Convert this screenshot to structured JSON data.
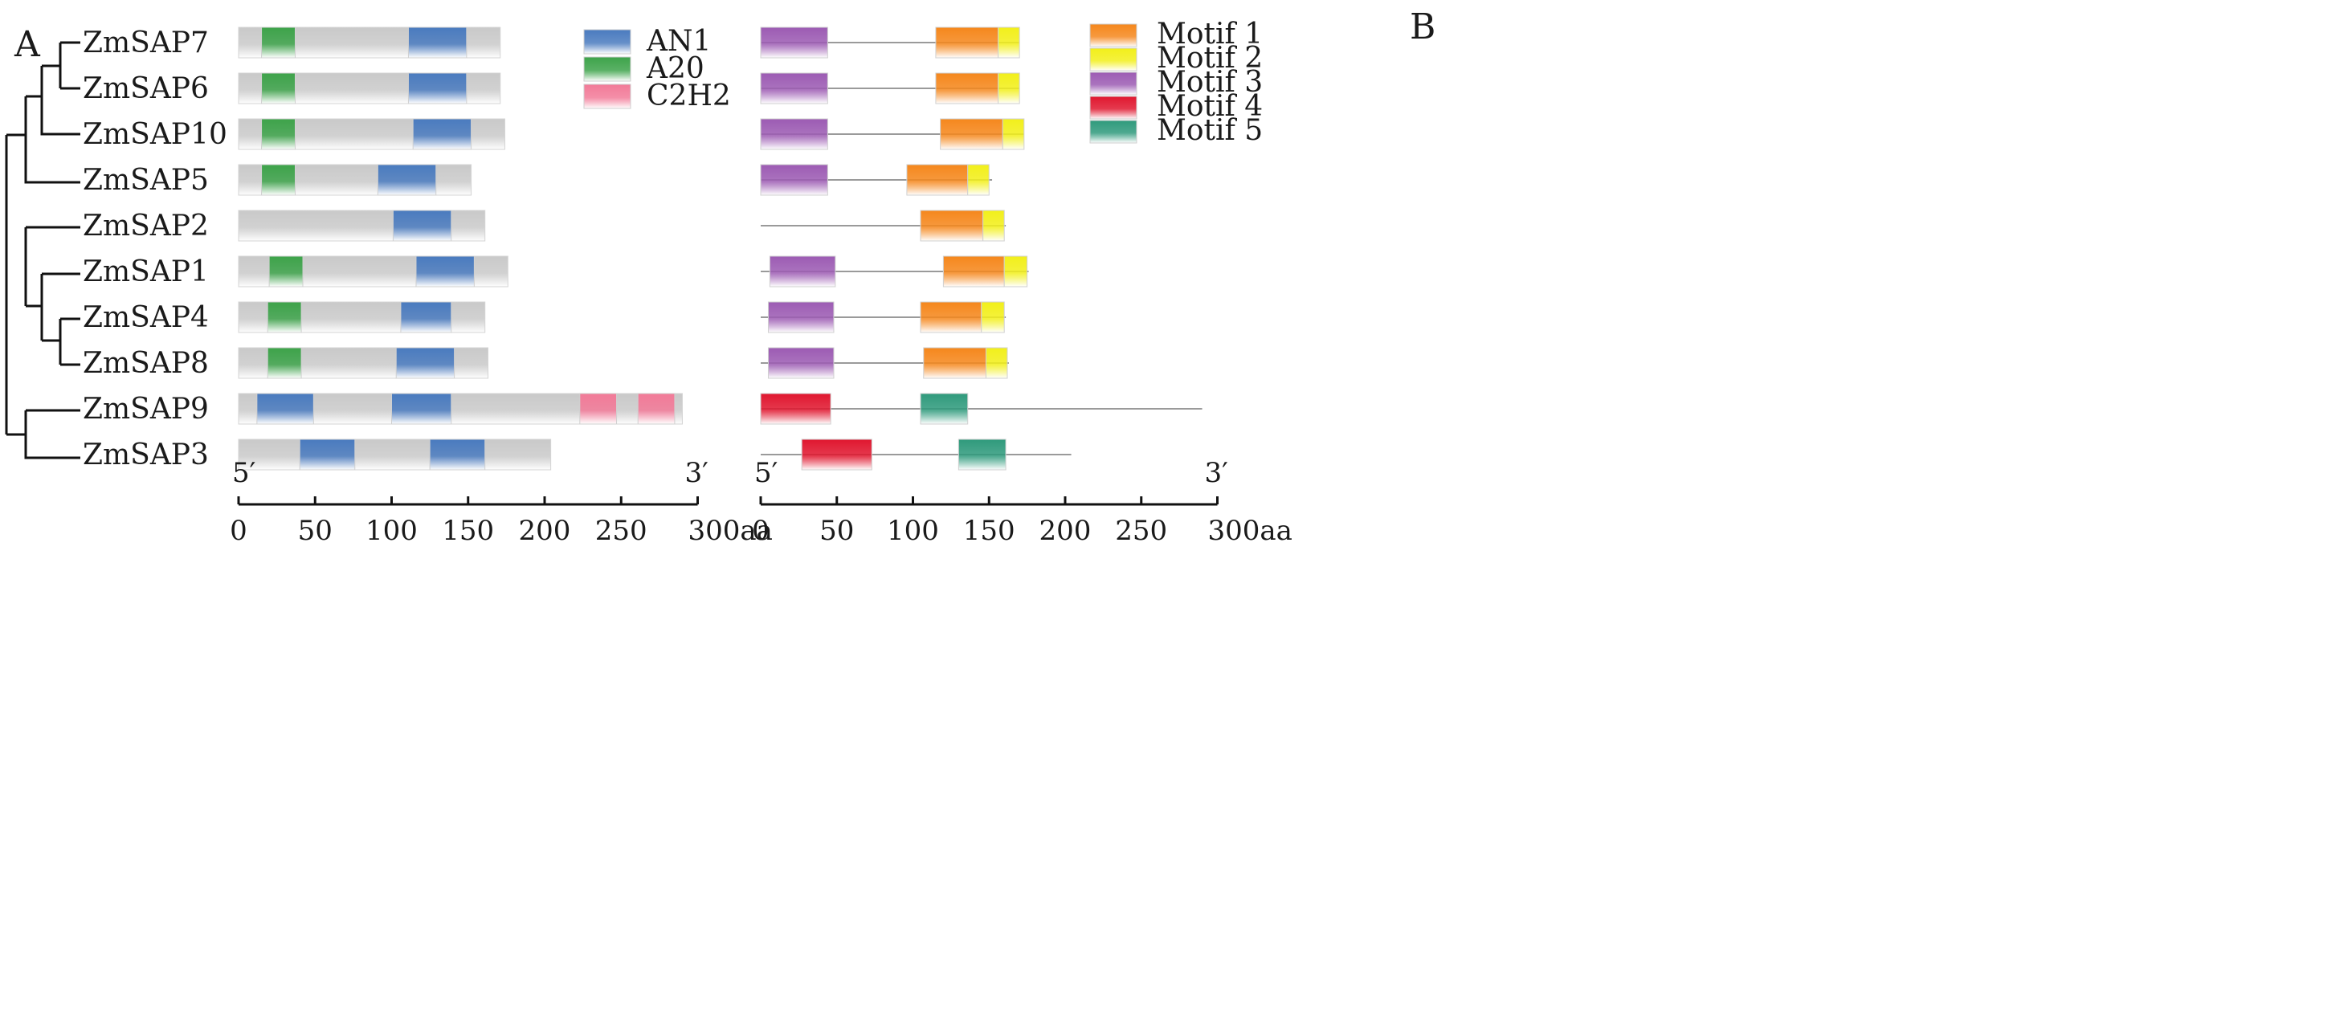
{
  "panel_a": {
    "label": "A"
  },
  "panel_b": {
    "label": "B"
  },
  "genes": [
    "ZmSAP7",
    "ZmSAP6",
    "ZmSAP10",
    "ZmSAP5",
    "ZmSAP2",
    "ZmSAP1",
    "ZmSAP4",
    "ZmSAP8",
    "ZmSAP9",
    "ZmSAP3"
  ],
  "axis": {
    "five_prime": "5′",
    "three_prime": "3′",
    "ticks": [
      0,
      50,
      100,
      150,
      200,
      250,
      300
    ],
    "tick_labels": [
      "0",
      "50",
      "100",
      "150",
      "200",
      "250",
      "300aa"
    ],
    "max_aa": 300
  },
  "domain_legend": [
    {
      "name": "AN1",
      "color": "#4a7bbf"
    },
    {
      "name": "A20",
      "color": "#3da34a"
    },
    {
      "name": "C2H2",
      "color": "#f27a98"
    }
  ],
  "motif_legend": [
    {
      "name": "Motif 1",
      "color": "#f5871c"
    },
    {
      "name": "Motif 2",
      "color": "#f2ef1a"
    },
    {
      "name": "Motif 3",
      "color": "#9c5bb3"
    },
    {
      "name": "Motif 4",
      "color": "#e0172f"
    },
    {
      "name": "Motif 5",
      "color": "#2f9a7c"
    }
  ],
  "domain_tracks": [
    {
      "gene": "ZmSAP7",
      "length": 171,
      "domains": [
        {
          "type": "A20",
          "start": 15,
          "end": 37
        },
        {
          "type": "AN1",
          "start": 111,
          "end": 149
        }
      ]
    },
    {
      "gene": "ZmSAP6",
      "length": 171,
      "domains": [
        {
          "type": "A20",
          "start": 15,
          "end": 37
        },
        {
          "type": "AN1",
          "start": 111,
          "end": 149
        }
      ]
    },
    {
      "gene": "ZmSAP10",
      "length": 174,
      "domains": [
        {
          "type": "A20",
          "start": 15,
          "end": 37
        },
        {
          "type": "AN1",
          "start": 114,
          "end": 152
        }
      ]
    },
    {
      "gene": "ZmSAP5",
      "length": 152,
      "domains": [
        {
          "type": "A20",
          "start": 15,
          "end": 37
        },
        {
          "type": "AN1",
          "start": 91,
          "end": 129
        }
      ]
    },
    {
      "gene": "ZmSAP2",
      "length": 161,
      "domains": [
        {
          "type": "AN1",
          "start": 101,
          "end": 139
        }
      ]
    },
    {
      "gene": "ZmSAP1",
      "length": 176,
      "domains": [
        {
          "type": "A20",
          "start": 20,
          "end": 42
        },
        {
          "type": "AN1",
          "start": 116,
          "end": 154
        }
      ]
    },
    {
      "gene": "ZmSAP4",
      "length": 161,
      "domains": [
        {
          "type": "A20",
          "start": 19,
          "end": 41
        },
        {
          "type": "AN1",
          "start": 106,
          "end": 139
        }
      ]
    },
    {
      "gene": "ZmSAP8",
      "length": 163,
      "domains": [
        {
          "type": "A20",
          "start": 19,
          "end": 41
        },
        {
          "type": "AN1",
          "start": 103,
          "end": 141
        }
      ]
    },
    {
      "gene": "ZmSAP9",
      "length": 290,
      "domains": [
        {
          "type": "AN1",
          "start": 12,
          "end": 49
        },
        {
          "type": "AN1",
          "start": 100,
          "end": 139
        },
        {
          "type": "C2H2",
          "start": 223,
          "end": 247
        },
        {
          "type": "C2H2",
          "start": 261,
          "end": 285
        }
      ]
    },
    {
      "gene": "ZmSAP3",
      "length": 204,
      "domains": [
        {
          "type": "AN1",
          "start": 40,
          "end": 76
        },
        {
          "type": "AN1",
          "start": 125,
          "end": 161
        }
      ]
    }
  ],
  "motif_tracks": [
    {
      "gene": "ZmSAP7",
      "length": 170,
      "motifs": [
        {
          "motif": "Motif 3",
          "start": 0,
          "end": 44
        },
        {
          "motif": "Motif 1",
          "start": 115,
          "end": 156
        },
        {
          "motif": "Motif 2",
          "start": 156,
          "end": 170
        }
      ]
    },
    {
      "gene": "ZmSAP6",
      "length": 170,
      "motifs": [
        {
          "motif": "Motif 3",
          "start": 0,
          "end": 44
        },
        {
          "motif": "Motif 1",
          "start": 115,
          "end": 156
        },
        {
          "motif": "Motif 2",
          "start": 156,
          "end": 170
        }
      ]
    },
    {
      "gene": "ZmSAP10",
      "length": 173,
      "motifs": [
        {
          "motif": "Motif 3",
          "start": 0,
          "end": 44
        },
        {
          "motif": "Motif 1",
          "start": 118,
          "end": 159
        },
        {
          "motif": "Motif 2",
          "start": 159,
          "end": 173
        }
      ]
    },
    {
      "gene": "ZmSAP5",
      "length": 152,
      "motifs": [
        {
          "motif": "Motif 3",
          "start": 0,
          "end": 44
        },
        {
          "motif": "Motif 1",
          "start": 96,
          "end": 136
        },
        {
          "motif": "Motif 2",
          "start": 136,
          "end": 150
        }
      ]
    },
    {
      "gene": "ZmSAP2",
      "length": 161,
      "motifs": [
        {
          "motif": "Motif 1",
          "start": 105,
          "end": 146
        },
        {
          "motif": "Motif 2",
          "start": 146,
          "end": 160
        }
      ]
    },
    {
      "gene": "ZmSAP1",
      "length": 176,
      "motifs": [
        {
          "motif": "Motif 3",
          "start": 6,
          "end": 49
        },
        {
          "motif": "Motif 1",
          "start": 120,
          "end": 160
        },
        {
          "motif": "Motif 2",
          "start": 160,
          "end": 175
        }
      ]
    },
    {
      "gene": "ZmSAP4",
      "length": 161,
      "motifs": [
        {
          "motif": "Motif 3",
          "start": 5,
          "end": 48
        },
        {
          "motif": "Motif 1",
          "start": 105,
          "end": 145
        },
        {
          "motif": "Motif 2",
          "start": 145,
          "end": 160
        }
      ]
    },
    {
      "gene": "ZmSAP8",
      "length": 163,
      "motifs": [
        {
          "motif": "Motif 3",
          "start": 5,
          "end": 48
        },
        {
          "motif": "Motif 1",
          "start": 107,
          "end": 148
        },
        {
          "motif": "Motif 2",
          "start": 148,
          "end": 162
        }
      ]
    },
    {
      "gene": "ZmSAP9",
      "length": 290,
      "motifs": [
        {
          "motif": "Motif 4",
          "start": 0,
          "end": 46
        },
        {
          "motif": "Motif 5",
          "start": 105,
          "end": 136
        }
      ]
    },
    {
      "gene": "ZmSAP3",
      "length": 204,
      "motifs": [
        {
          "motif": "Motif 4",
          "start": 27,
          "end": 73
        },
        {
          "motif": "Motif 5",
          "start": 130,
          "end": 161
        }
      ]
    }
  ]
}
